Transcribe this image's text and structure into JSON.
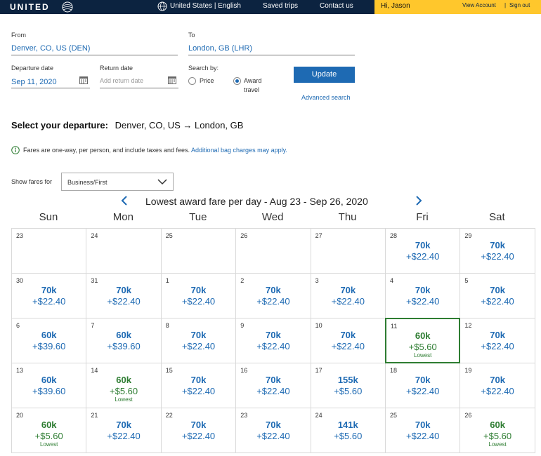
{
  "header": {
    "logo_text": "UNITED",
    "locale_link": "United States | English",
    "saved_trips": "Saved trips",
    "contact_us": "Contact us",
    "greeting": "Hi, Jason",
    "view_account": "View Account",
    "separator": "|",
    "sign_out": "Sign out",
    "colors": {
      "navy": "#0c2340",
      "gold": "#ffc72c"
    }
  },
  "search": {
    "from_label": "From",
    "from_value": "Denver, CO, US (DEN)",
    "to_label": "To",
    "to_value": "London, GB (LHR)",
    "departure_label": "Departure date",
    "departure_value": "Sep 11, 2020",
    "return_label": "Return date",
    "return_placeholder": "Add return date",
    "search_by_label": "Search by:",
    "option_price": "Price",
    "option_award_line1": "Award",
    "option_award_line2": "travel",
    "selected_option": "Award travel",
    "update_button": "Update",
    "advanced_search": "Advanced search"
  },
  "selection": {
    "heading_bold": "Select your departure:",
    "route": "Denver, CO, US → London, GB"
  },
  "info": {
    "text": "Fares are one-way, per person, and include taxes and fees.",
    "link": "Additional bag charges may apply."
  },
  "filter": {
    "label": "Show fares for",
    "selected": "Business/First"
  },
  "calendar": {
    "title": "Lowest award fare per day - Aug 23 - Sep 26, 2020",
    "weekdays": [
      "Sun",
      "Mon",
      "Tue",
      "Wed",
      "Thu",
      "Fri",
      "Sat"
    ],
    "lowest_label": "Lowest",
    "colors": {
      "fare": "#1e6ab3",
      "lowest": "#2e7d32"
    },
    "weeks": [
      [
        {
          "day": "23"
        },
        {
          "day": "24"
        },
        {
          "day": "25"
        },
        {
          "day": "26"
        },
        {
          "day": "27"
        },
        {
          "day": "28",
          "miles": "70k",
          "tax": "+$22.40"
        },
        {
          "day": "29",
          "miles": "70k",
          "tax": "+$22.40"
        }
      ],
      [
        {
          "day": "30",
          "miles": "70k",
          "tax": "+$22.40"
        },
        {
          "day": "31",
          "miles": "70k",
          "tax": "+$22.40"
        },
        {
          "day": "1",
          "miles": "70k",
          "tax": "+$22.40"
        },
        {
          "day": "2",
          "miles": "70k",
          "tax": "+$22.40"
        },
        {
          "day": "3",
          "miles": "70k",
          "tax": "+$22.40"
        },
        {
          "day": "4",
          "miles": "70k",
          "tax": "+$22.40"
        },
        {
          "day": "5",
          "miles": "70k",
          "tax": "+$22.40"
        }
      ],
      [
        {
          "day": "6",
          "miles": "60k",
          "tax": "+$39.60"
        },
        {
          "day": "7",
          "miles": "60k",
          "tax": "+$39.60"
        },
        {
          "day": "8",
          "miles": "70k",
          "tax": "+$22.40"
        },
        {
          "day": "9",
          "miles": "70k",
          "tax": "+$22.40"
        },
        {
          "day": "10",
          "miles": "70k",
          "tax": "+$22.40"
        },
        {
          "day": "11",
          "miles": "60k",
          "tax": "+$5.60",
          "lowest": true,
          "selected": true
        },
        {
          "day": "12",
          "miles": "70k",
          "tax": "+$22.40"
        }
      ],
      [
        {
          "day": "13",
          "miles": "60k",
          "tax": "+$39.60"
        },
        {
          "day": "14",
          "miles": "60k",
          "tax": "+$5.60",
          "lowest": true
        },
        {
          "day": "15",
          "miles": "70k",
          "tax": "+$22.40"
        },
        {
          "day": "16",
          "miles": "70k",
          "tax": "+$22.40"
        },
        {
          "day": "17",
          "miles": "155k",
          "tax": "+$5.60"
        },
        {
          "day": "18",
          "miles": "70k",
          "tax": "+$22.40"
        },
        {
          "day": "19",
          "miles": "70k",
          "tax": "+$22.40"
        }
      ],
      [
        {
          "day": "20",
          "miles": "60k",
          "tax": "+$5.60",
          "lowest": true
        },
        {
          "day": "21",
          "miles": "70k",
          "tax": "+$22.40"
        },
        {
          "day": "22",
          "miles": "70k",
          "tax": "+$22.40"
        },
        {
          "day": "23",
          "miles": "70k",
          "tax": "+$22.40"
        },
        {
          "day": "24",
          "miles": "141k",
          "tax": "+$5.60"
        },
        {
          "day": "25",
          "miles": "70k",
          "tax": "+$22.40"
        },
        {
          "day": "26",
          "miles": "60k",
          "tax": "+$5.60",
          "lowest": true
        }
      ]
    ]
  }
}
